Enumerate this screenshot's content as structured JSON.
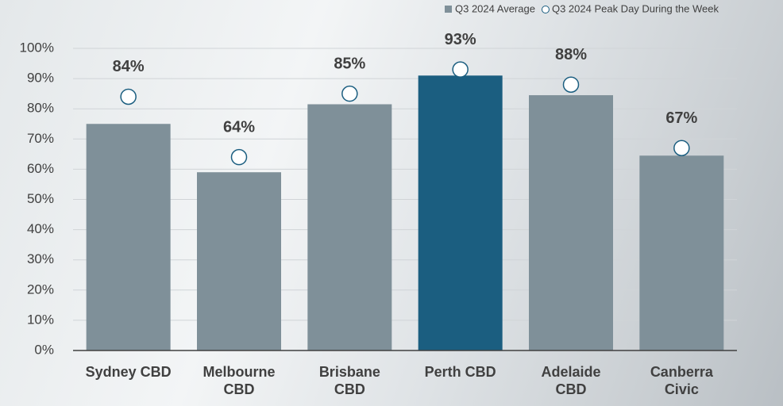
{
  "chart_data": {
    "type": "bar",
    "categories": [
      "Sydney CBD",
      "Melbourne CBD",
      "Brisbane CBD",
      "Perth CBD",
      "Adelaide CBD",
      "Canberra Civic"
    ],
    "series": [
      {
        "name": "Q3 2024 Average",
        "color": "#7f9099",
        "colors": [
          "#7f9099",
          "#7f9099",
          "#7f9099",
          "#1b5e80",
          "#7f9099",
          "#7f9099"
        ],
        "values": [
          75,
          59,
          81.5,
          91,
          84.5,
          64.5
        ]
      },
      {
        "name": "Q3 2024 Peak Day During the Week",
        "color": "#ffffff",
        "marker": "circle",
        "values": [
          84,
          64,
          85,
          93,
          88,
          67
        ],
        "value_labels": [
          "84%",
          "64%",
          "85%",
          "93%",
          "88%",
          "67%"
        ]
      }
    ],
    "ylim": [
      0,
      100
    ],
    "yticks": [
      {
        "value": 0,
        "label": "0%"
      },
      {
        "value": 10,
        "label": "10%"
      },
      {
        "value": 20,
        "label": "20%"
      },
      {
        "value": 30,
        "label": "30%"
      },
      {
        "value": 40,
        "label": "40%"
      },
      {
        "value": 50,
        "label": "50%"
      },
      {
        "value": 60,
        "label": "60%"
      },
      {
        "value": 70,
        "label": "70%"
      },
      {
        "value": 80,
        "label": "80%"
      },
      {
        "value": 90,
        "label": "90%"
      },
      {
        "value": 100,
        "label": "100%"
      }
    ],
    "grid": true,
    "legend": "top-right"
  }
}
